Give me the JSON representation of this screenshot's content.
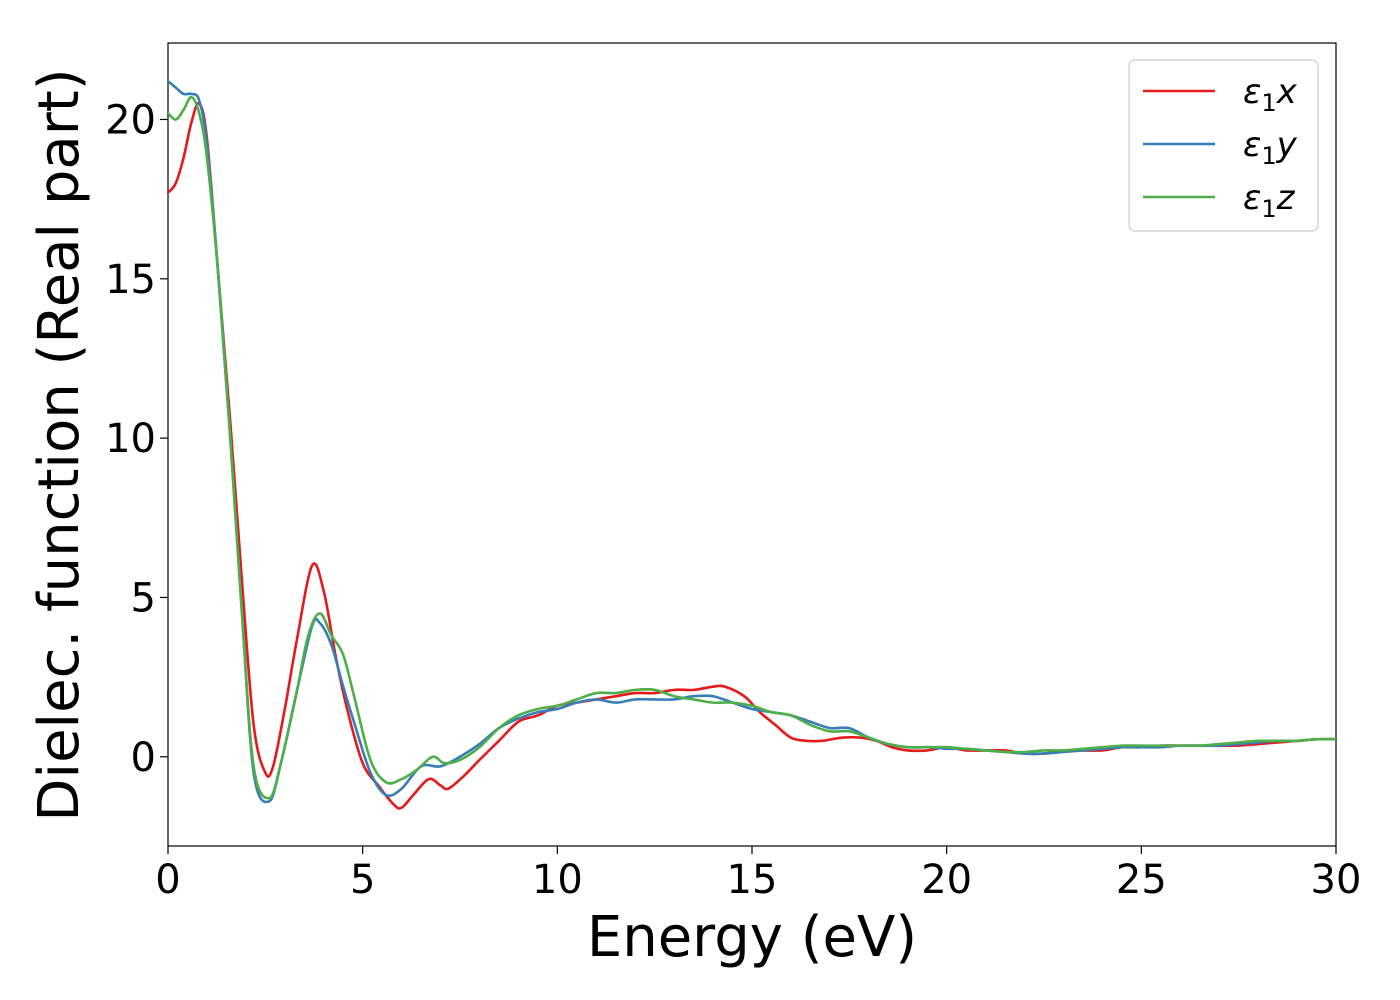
{
  "chart_data": {
    "type": "line",
    "xlabel": "Energy (eV)",
    "ylabel": "Dielec. function (Real part)",
    "xlim": [
      0,
      30
    ],
    "ylim": [
      -2.8,
      22.4
    ],
    "xticks": [
      0,
      5,
      10,
      15,
      20,
      25,
      30
    ],
    "yticks": [
      0,
      5,
      10,
      15,
      20
    ],
    "grid": false,
    "legend_position": "top-right",
    "series": [
      {
        "name": "ε₁x",
        "legend_base": "ε",
        "legend_sub": "1",
        "legend_var": "x",
        "color": "#e41a1c",
        "x": [
          0,
          0.2,
          0.4,
          0.6,
          0.8,
          1.0,
          1.3,
          1.6,
          1.9,
          2.2,
          2.5,
          2.7,
          3.0,
          3.3,
          3.7,
          4.0,
          4.3,
          4.6,
          5.0,
          5.4,
          5.8,
          6.0,
          6.3,
          6.7,
          7.0,
          7.2,
          7.6,
          8.0,
          8.5,
          9.0,
          9.5,
          10.0,
          10.5,
          11.0,
          11.5,
          12.0,
          12.5,
          13.0,
          13.5,
          14.0,
          14.3,
          14.8,
          15.2,
          15.6,
          16.0,
          16.4,
          16.8,
          17.3,
          17.8,
          18.2,
          18.6,
          19.0,
          19.5,
          20.0,
          20.5,
          21.0,
          21.5,
          22.0,
          22.5,
          23.0,
          23.5,
          24.0,
          24.5,
          25.0,
          25.5,
          26.0,
          26.5,
          27.0,
          27.5,
          28.0,
          28.5,
          29.0,
          29.5,
          30.0
        ],
        "y": [
          17.7,
          18.0,
          18.8,
          19.9,
          20.5,
          19.4,
          15.0,
          10.5,
          5.5,
          1.0,
          -0.5,
          -0.3,
          1.5,
          3.6,
          6.0,
          5.2,
          3.2,
          1.5,
          -0.2,
          -0.9,
          -1.5,
          -1.6,
          -1.2,
          -0.7,
          -0.9,
          -1.0,
          -0.6,
          -0.1,
          0.5,
          1.1,
          1.3,
          1.6,
          1.7,
          1.8,
          1.9,
          2.0,
          2.0,
          2.1,
          2.1,
          2.2,
          2.2,
          1.9,
          1.4,
          1.0,
          0.6,
          0.5,
          0.5,
          0.6,
          0.6,
          0.5,
          0.3,
          0.2,
          0.2,
          0.3,
          0.2,
          0.2,
          0.2,
          0.1,
          0.1,
          0.2,
          0.2,
          0.2,
          0.3,
          0.3,
          0.35,
          0.35,
          0.35,
          0.35,
          0.35,
          0.4,
          0.45,
          0.5,
          0.55,
          0.55
        ]
      },
      {
        "name": "ε₁y",
        "legend_base": "ε",
        "legend_sub": "1",
        "legend_var": "y",
        "color": "#377eb8",
        "x": [
          0,
          0.2,
          0.4,
          0.6,
          0.8,
          1.0,
          1.3,
          1.6,
          1.9,
          2.2,
          2.6,
          2.9,
          3.3,
          3.7,
          3.9,
          4.2,
          4.5,
          4.8,
          5.2,
          5.6,
          6.0,
          6.5,
          7.0,
          7.5,
          8.0,
          8.5,
          9.0,
          9.5,
          10.0,
          10.5,
          11.0,
          11.5,
          12.0,
          12.5,
          13.0,
          13.5,
          14.0,
          14.5,
          15.0,
          15.5,
          16.0,
          16.5,
          17.0,
          17.5,
          18.0,
          18.5,
          19.0,
          19.5,
          20.0,
          20.5,
          21.0,
          21.5,
          22.0,
          22.5,
          23.0,
          23.5,
          24.0,
          24.5,
          25.0,
          25.5,
          26.0,
          26.5,
          27.0,
          27.5,
          28.0,
          28.5,
          29.0,
          29.5,
          30.0
        ],
        "y": [
          21.2,
          21.0,
          20.8,
          20.8,
          20.6,
          19.2,
          15.0,
          10.0,
          4.5,
          -0.5,
          -1.4,
          -0.2,
          2.0,
          4.1,
          4.2,
          3.5,
          2.2,
          1.0,
          -0.5,
          -1.2,
          -1.0,
          -0.3,
          -0.3,
          0.0,
          0.4,
          0.9,
          1.2,
          1.4,
          1.5,
          1.7,
          1.8,
          1.7,
          1.8,
          1.8,
          1.8,
          1.9,
          1.9,
          1.7,
          1.5,
          1.4,
          1.3,
          1.1,
          0.9,
          0.9,
          0.6,
          0.4,
          0.3,
          0.3,
          0.25,
          0.25,
          0.2,
          0.15,
          0.1,
          0.1,
          0.15,
          0.2,
          0.25,
          0.3,
          0.3,
          0.3,
          0.35,
          0.35,
          0.35,
          0.4,
          0.45,
          0.5,
          0.5,
          0.55,
          0.55
        ]
      },
      {
        "name": "ε₁z",
        "legend_base": "ε",
        "legend_sub": "1",
        "legend_var": "z",
        "color": "#4daf4a",
        "x": [
          0,
          0.2,
          0.4,
          0.6,
          0.8,
          1.0,
          1.3,
          1.6,
          1.9,
          2.2,
          2.6,
          2.9,
          3.3,
          3.6,
          3.9,
          4.2,
          4.5,
          4.8,
          5.2,
          5.6,
          6.0,
          6.4,
          6.8,
          7.1,
          7.5,
          8.0,
          8.5,
          9.0,
          9.5,
          10.0,
          10.5,
          11.0,
          11.5,
          12.0,
          12.5,
          13.0,
          13.5,
          14.0,
          14.5,
          15.0,
          15.5,
          16.0,
          16.5,
          17.0,
          17.5,
          18.0,
          18.5,
          19.0,
          19.5,
          20.0,
          20.5,
          21.0,
          21.5,
          22.0,
          22.5,
          23.0,
          23.5,
          24.0,
          24.5,
          25.0,
          25.5,
          26.0,
          26.5,
          27.0,
          27.5,
          28.0,
          28.5,
          29.0,
          29.5,
          30.0
        ],
        "y": [
          20.2,
          20.0,
          20.3,
          20.7,
          20.2,
          18.8,
          15.0,
          10.0,
          4.5,
          -0.3,
          -1.3,
          -0.2,
          2.0,
          3.8,
          4.5,
          3.8,
          3.2,
          1.8,
          -0.1,
          -0.8,
          -0.7,
          -0.4,
          0.0,
          -0.2,
          -0.1,
          0.3,
          0.9,
          1.3,
          1.5,
          1.6,
          1.8,
          2.0,
          2.0,
          2.1,
          2.1,
          1.9,
          1.8,
          1.7,
          1.7,
          1.6,
          1.4,
          1.3,
          1.0,
          0.8,
          0.8,
          0.6,
          0.4,
          0.3,
          0.3,
          0.3,
          0.25,
          0.2,
          0.15,
          0.15,
          0.2,
          0.2,
          0.25,
          0.3,
          0.35,
          0.35,
          0.35,
          0.35,
          0.35,
          0.4,
          0.45,
          0.5,
          0.5,
          0.5,
          0.55,
          0.55
        ]
      }
    ]
  }
}
